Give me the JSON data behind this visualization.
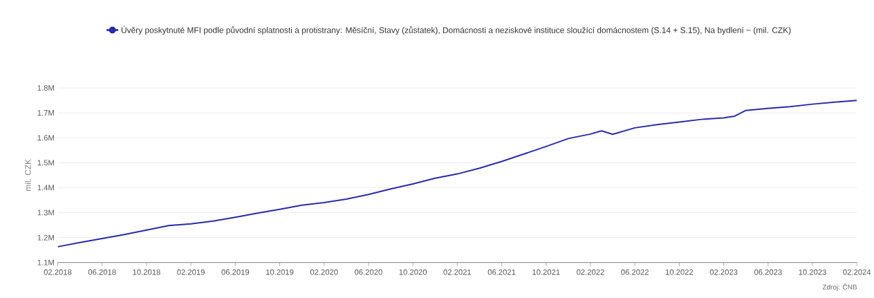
{
  "chart_data": {
    "type": "line",
    "ylabel": "mil. CZK",
    "annotations": [
      "Zdroj: ČNB"
    ],
    "x": [
      "2018-02",
      "2018-04",
      "2018-06",
      "2018-08",
      "2018-10",
      "2018-12",
      "2019-02",
      "2019-04",
      "2019-06",
      "2019-08",
      "2019-10",
      "2019-12",
      "2020-02",
      "2020-04",
      "2020-06",
      "2020-08",
      "2020-10",
      "2020-12",
      "2021-02",
      "2021-04",
      "2021-06",
      "2021-08",
      "2021-10",
      "2021-12",
      "2022-02",
      "2022-03",
      "2022-04",
      "2022-06",
      "2022-08",
      "2022-10",
      "2022-12",
      "2023-02",
      "2023-03",
      "2023-04",
      "2023-06",
      "2023-08",
      "2023-10",
      "2023-12",
      "2024-02"
    ],
    "series": [
      {
        "name": "Úvěry poskytnuté MFI podle původní splatnosti a protistrany: Měsíční, Stavy (zůstatek), Domácnosti a neziskové instituce sloužící domácnostem (S.14 + S.15), Na bydlení ~ (mil. CZK)",
        "color": "#2a2aa8",
        "values": [
          1163000,
          1180000,
          1196000,
          1212000,
          1230000,
          1248000,
          1255000,
          1266000,
          1281000,
          1298000,
          1313000,
          1330000,
          1340000,
          1354000,
          1373000,
          1395000,
          1415000,
          1438000,
          1455000,
          1478000,
          1505000,
          1535000,
          1565000,
          1597000,
          1615000,
          1628000,
          1614000,
          1640000,
          1653000,
          1663000,
          1674000,
          1680000,
          1687000,
          1710000,
          1718000,
          1725000,
          1735000,
          1743000,
          1750000
        ]
      }
    ],
    "xlim": [
      "2018-02",
      "2024-02"
    ],
    "xticks": [
      {
        "value": "2018-02",
        "label": "02.2018"
      },
      {
        "value": "2018-06",
        "label": "06.2018"
      },
      {
        "value": "2018-10",
        "label": "10.2018"
      },
      {
        "value": "2019-02",
        "label": "02.2019"
      },
      {
        "value": "2019-06",
        "label": "06.2019"
      },
      {
        "value": "2019-10",
        "label": "10.2019"
      },
      {
        "value": "2020-02",
        "label": "02.2020"
      },
      {
        "value": "2020-06",
        "label": "06.2020"
      },
      {
        "value": "2020-10",
        "label": "10.2020"
      },
      {
        "value": "2021-02",
        "label": "02.2021"
      },
      {
        "value": "2021-06",
        "label": "06.2021"
      },
      {
        "value": "2021-10",
        "label": "10.2021"
      },
      {
        "value": "2022-02",
        "label": "02.2022"
      },
      {
        "value": "2022-06",
        "label": "06.2022"
      },
      {
        "value": "2022-10",
        "label": "10.2022"
      },
      {
        "value": "2023-02",
        "label": "02.2023"
      },
      {
        "value": "2023-06",
        "label": "06.2023"
      },
      {
        "value": "2023-10",
        "label": "10.2023"
      },
      {
        "value": "2024-02",
        "label": "02.2024"
      }
    ],
    "ylim": [
      1100000,
      1800000
    ],
    "yticks": [
      {
        "value": 1100000,
        "label": "1.1M"
      },
      {
        "value": 1200000,
        "label": "1.2M"
      },
      {
        "value": 1300000,
        "label": "1.3M"
      },
      {
        "value": 1400000,
        "label": "1.4M"
      },
      {
        "value": 1500000,
        "label": "1.5M"
      },
      {
        "value": 1600000,
        "label": "1.6M"
      },
      {
        "value": 1700000,
        "label": "1.7M"
      },
      {
        "value": 1800000,
        "label": "1.8M"
      }
    ],
    "grid": "y",
    "legend": "top"
  }
}
